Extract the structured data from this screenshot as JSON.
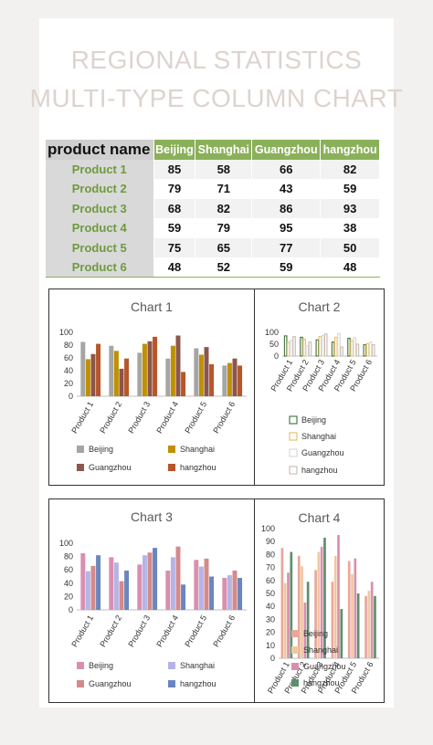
{
  "page": {
    "title_line1": "REGIONAL STATISTICS",
    "title_line2": "MULTI-TYPE COLUMN CHART"
  },
  "table": {
    "header": [
      "product name",
      "Beijing",
      "Shanghai",
      "Guangzhou",
      "hangzhou"
    ],
    "rows": [
      {
        "name": "Product 1",
        "values": [
          85,
          58,
          66,
          82
        ]
      },
      {
        "name": "Product 2",
        "values": [
          79,
          71,
          43,
          59
        ]
      },
      {
        "name": "Product 3",
        "values": [
          68,
          82,
          86,
          93
        ]
      },
      {
        "name": "Product 4",
        "values": [
          59,
          79,
          95,
          38
        ]
      },
      {
        "name": "Product 5",
        "values": [
          75,
          65,
          77,
          50
        ]
      },
      {
        "name": "Product 6",
        "values": [
          48,
          52,
          59,
          48
        ]
      }
    ]
  },
  "chart_data": [
    {
      "type": "bar",
      "title": "Chart 1",
      "categories": [
        "Product 1",
        "Product 2",
        "Product 3",
        "Product 4",
        "Product 5",
        "Product 6"
      ],
      "ylim": [
        0,
        100
      ],
      "yticks": [
        "0",
        "20",
        "40",
        "60",
        "80",
        "100"
      ],
      "legend_position": "bottom",
      "style": "solid",
      "colors": [
        "#a5a5a5",
        "#bf9000",
        "#8c564b",
        "#b7562a"
      ],
      "series": [
        {
          "name": "Beijing",
          "values": [
            85,
            79,
            68,
            59,
            75,
            48
          ]
        },
        {
          "name": "Shanghai",
          "values": [
            58,
            71,
            82,
            79,
            65,
            52
          ]
        },
        {
          "name": "Guangzhou",
          "values": [
            66,
            43,
            86,
            95,
            77,
            59
          ]
        },
        {
          "name": "hangzhou",
          "values": [
            82,
            59,
            93,
            38,
            50,
            48
          ]
        }
      ]
    },
    {
      "type": "bar",
      "title": "Chart 2",
      "categories": [
        "Product 1",
        "Product 2",
        "Product 3",
        "Product 4",
        "Product 5",
        "Product 6"
      ],
      "ylim": [
        0,
        100
      ],
      "yticks": [
        "0",
        "50",
        "100"
      ],
      "legend_position": "bottom",
      "style": "outline",
      "colors": [
        "#4e7a4a",
        "#e8c26a",
        "#d9d9d9",
        "#cdbfb6"
      ],
      "series": [
        {
          "name": "Beijing",
          "values": [
            85,
            79,
            68,
            59,
            75,
            48
          ]
        },
        {
          "name": "Shanghai",
          "values": [
            58,
            71,
            82,
            79,
            65,
            52
          ]
        },
        {
          "name": "Guangzhou",
          "values": [
            66,
            43,
            86,
            95,
            77,
            59
          ]
        },
        {
          "name": "hangzhou",
          "values": [
            82,
            59,
            93,
            38,
            50,
            48
          ]
        }
      ]
    },
    {
      "type": "bar",
      "title": "Chart 3",
      "categories": [
        "Product 1",
        "Product 2",
        "Product 3",
        "Product 4",
        "Product 5",
        "Product 6"
      ],
      "ylim": [
        0,
        100
      ],
      "yticks": [
        "0",
        "20",
        "40",
        "60",
        "80",
        "100"
      ],
      "legend_position": "bottom",
      "style": "solid",
      "colors": [
        "#d98fb0",
        "#b4b4e6",
        "#d48a8a",
        "#6a86bf"
      ],
      "series": [
        {
          "name": "Beijing",
          "values": [
            85,
            79,
            68,
            59,
            75,
            48
          ]
        },
        {
          "name": "Shanghai",
          "values": [
            58,
            71,
            82,
            79,
            65,
            52
          ]
        },
        {
          "name": "Guangzhou",
          "values": [
            66,
            43,
            86,
            95,
            77,
            59
          ]
        },
        {
          "name": "hangzhou",
          "values": [
            82,
            59,
            93,
            38,
            50,
            48
          ]
        }
      ]
    },
    {
      "type": "bar",
      "title": "Chart 4",
      "categories": [
        "Product 1",
        "Product 2",
        "Product 3",
        "Product 4",
        "Product 5",
        "Product 6"
      ],
      "ylim": [
        0,
        100
      ],
      "yticks": [
        "0",
        "10",
        "20",
        "30",
        "40",
        "50",
        "60",
        "70",
        "80",
        "90",
        "100"
      ],
      "legend_position": "overlay-bottom-left",
      "style": "solid",
      "colors": [
        "#e8a79d",
        "#f0c8a0",
        "#d98fb0",
        "#5e8f6b"
      ],
      "series": [
        {
          "name": "Beijing",
          "values": [
            85,
            79,
            68,
            59,
            75,
            48
          ]
        },
        {
          "name": "Shanghai",
          "values": [
            58,
            71,
            82,
            79,
            65,
            52
          ]
        },
        {
          "name": "Guangzhou",
          "values": [
            66,
            43,
            86,
            95,
            77,
            59
          ]
        },
        {
          "name": "hangzhou",
          "values": [
            82,
            59,
            93,
            38,
            50,
            48
          ]
        }
      ]
    }
  ]
}
